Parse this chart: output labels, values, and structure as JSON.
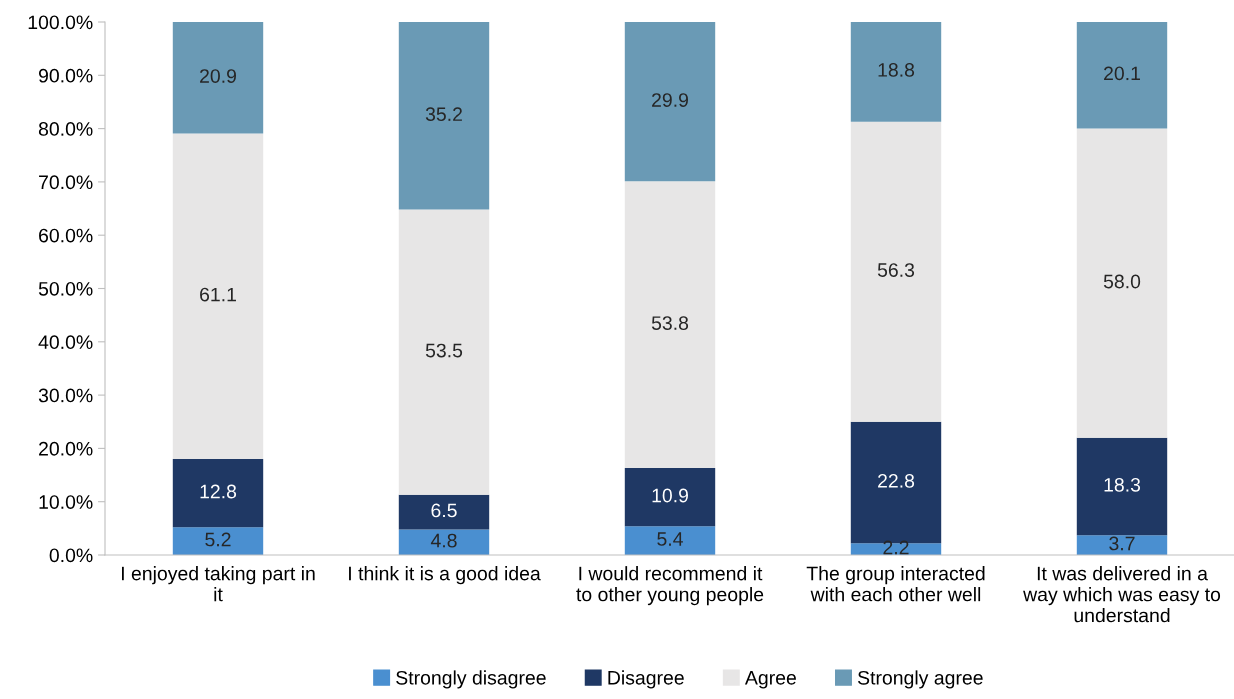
{
  "chart_data": {
    "type": "bar",
    "stacked": true,
    "legend": "bottom",
    "grid": false,
    "categories": [
      "I enjoyed taking part in\nit",
      "I think it is a good idea",
      "I would recommend it\nto other young people",
      "The group interacted\nwith each other well",
      "It was delivered in a\nway which was easy to\nunderstand"
    ],
    "series": [
      {
        "name": "Strongly disagree",
        "color": "#4a8fd0",
        "values": [
          5.2,
          4.8,
          5.4,
          2.2,
          3.7
        ],
        "value_labels": [
          "5.2",
          "4.8",
          "5.4",
          "2.2",
          "3.7"
        ]
      },
      {
        "name": "Disagree",
        "color": "#1f3864",
        "values": [
          12.8,
          6.5,
          10.9,
          22.8,
          18.3
        ],
        "value_labels": [
          "12.8",
          "6.5",
          "10.9",
          "22.8",
          "18.3"
        ]
      },
      {
        "name": "Agree",
        "color": "#e7e6e6",
        "values": [
          61.1,
          53.5,
          53.8,
          56.3,
          58.0
        ],
        "value_labels": [
          "61.1",
          "53.5",
          "53.8",
          "56.3",
          "58.0"
        ]
      },
      {
        "name": "Strongly agree",
        "color": "#6a9ab5",
        "values": [
          20.9,
          35.2,
          29.9,
          18.8,
          20.1
        ],
        "value_labels": [
          "20.9",
          "35.2",
          "29.9",
          "18.8",
          "20.1"
        ]
      }
    ],
    "ylim": [
      0,
      100
    ],
    "yticks": [
      {
        "value": 0,
        "label": "0.0%"
      },
      {
        "value": 10,
        "label": "10.0%"
      },
      {
        "value": 20,
        "label": "20.0%"
      },
      {
        "value": 30,
        "label": "30.0%"
      },
      {
        "value": 40,
        "label": "40.0%"
      },
      {
        "value": 50,
        "label": "50.0%"
      },
      {
        "value": 60,
        "label": "60.0%"
      },
      {
        "value": 70,
        "label": "70.0%"
      },
      {
        "value": 80,
        "label": "80.0%"
      },
      {
        "value": 90,
        "label": "90.0%"
      },
      {
        "value": 100,
        "label": "100.0%"
      }
    ]
  }
}
